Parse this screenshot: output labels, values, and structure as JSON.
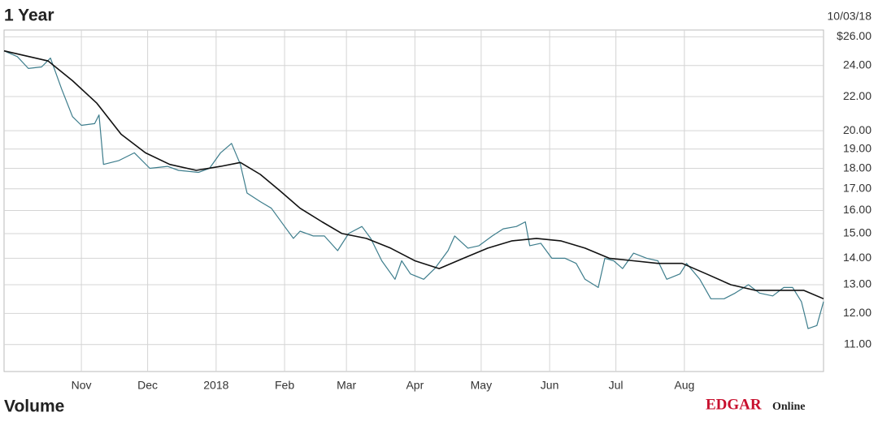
{
  "chart_data": {
    "type": "line",
    "title": "1 Year",
    "date": "10/03/18",
    "footer": "Volume",
    "brand": {
      "main": "EDGAR",
      "sub": "Online"
    },
    "xlim": [
      -6,
      365
    ],
    "xticks": [
      {
        "value": 29,
        "label": "Nov"
      },
      {
        "value": 59,
        "label": "Dec"
      },
      {
        "value": 90,
        "label": "2018"
      },
      {
        "value": 121,
        "label": "Feb"
      },
      {
        "value": 149,
        "label": "Mar"
      },
      {
        "value": 180,
        "label": "Apr"
      },
      {
        "value": 210,
        "label": "May"
      },
      {
        "value": 241,
        "label": "Jun"
      },
      {
        "value": 271,
        "label": "Jul"
      },
      {
        "value": 302,
        "label": "Aug"
      }
    ],
    "ylim": [
      10.2,
      26.5
    ],
    "log_y": true,
    "grid": true,
    "yticks": [
      {
        "value": 26,
        "label": "$26.00"
      },
      {
        "value": 24,
        "label": "24.00"
      },
      {
        "value": 22,
        "label": "22.00"
      },
      {
        "value": 20,
        "label": "20.00"
      },
      {
        "value": 19,
        "label": "19.00"
      },
      {
        "value": 18,
        "label": "18.00"
      },
      {
        "value": 17,
        "label": "17.00"
      },
      {
        "value": 16,
        "label": "16.00"
      },
      {
        "value": 15,
        "label": "15.00"
      },
      {
        "value": 14,
        "label": "14.00"
      },
      {
        "value": 13,
        "label": "13.00"
      },
      {
        "value": 12,
        "label": "12.00"
      },
      {
        "value": 11,
        "label": "11.00"
      }
    ],
    "series": [
      {
        "color": "#3d7d8c",
        "width": 1.2,
        "x": [
          -6,
          0,
          5,
          11,
          15,
          20,
          25,
          29,
          35,
          37,
          39,
          46,
          53,
          60,
          68,
          73,
          82,
          87,
          92,
          97,
          101,
          104,
          110,
          115,
          121,
          125,
          128,
          134,
          139,
          145,
          150,
          156,
          160,
          165,
          171,
          174,
          178,
          184,
          189,
          195,
          198,
          204,
          209,
          215,
          220,
          226,
          230,
          232,
          237,
          242,
          248,
          253,
          257,
          263,
          266,
          270,
          274,
          279,
          285,
          290,
          294,
          300,
          303,
          309,
          314,
          320,
          325,
          331,
          336,
          342,
          347,
          351,
          355,
          358,
          362,
          365
        ],
        "values": [
          25.0,
          24.6,
          23.8,
          23.9,
          24.5,
          22.5,
          20.8,
          20.3,
          20.4,
          20.9,
          18.2,
          18.4,
          18.8,
          18.0,
          18.1,
          17.9,
          17.8,
          18.0,
          18.8,
          19.3,
          18.2,
          16.8,
          16.4,
          16.1,
          15.3,
          14.8,
          15.1,
          14.9,
          14.9,
          14.3,
          15.0,
          15.3,
          14.8,
          13.9,
          13.2,
          13.9,
          13.4,
          13.2,
          13.6,
          14.3,
          14.9,
          14.4,
          14.5,
          14.9,
          15.2,
          15.3,
          15.5,
          14.5,
          14.6,
          14.0,
          14.0,
          13.8,
          13.2,
          12.9,
          14.0,
          13.9,
          13.6,
          14.2,
          14.0,
          13.9,
          13.2,
          13.4,
          13.8,
          13.2,
          12.5,
          12.5,
          12.7,
          13.0,
          12.7,
          12.6,
          12.9,
          12.9,
          12.4,
          11.5,
          11.6,
          12.4
        ]
      },
      {
        "color": "#111111",
        "width": 1.6,
        "x": [
          -6,
          14,
          25,
          36,
          47,
          58,
          69,
          81,
          92,
          101,
          110,
          119,
          128,
          138,
          147,
          158,
          169,
          180,
          191,
          202,
          213,
          224,
          235,
          246,
          257,
          268,
          279,
          290,
          301,
          312,
          323,
          334,
          345,
          356,
          365
        ],
        "values": [
          25.0,
          24.3,
          23.0,
          21.6,
          19.8,
          18.8,
          18.2,
          17.9,
          18.1,
          18.3,
          17.7,
          16.9,
          16.1,
          15.5,
          15.0,
          14.8,
          14.4,
          13.9,
          13.6,
          14.0,
          14.4,
          14.7,
          14.8,
          14.7,
          14.4,
          14.0,
          13.9,
          13.8,
          13.8,
          13.4,
          13.0,
          12.8,
          12.8,
          12.8,
          12.5
        ]
      }
    ]
  }
}
